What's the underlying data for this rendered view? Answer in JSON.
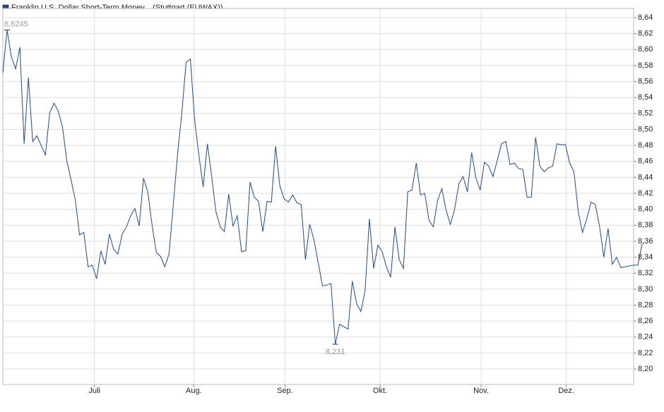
{
  "chart_data": {
    "type": "line",
    "series": [
      {
        "name": "Franklin U.S. Dollar Short-Term Money... (Stuttgart (EUWAX))",
        "color": "#1f4b8f",
        "values": [
          8.571,
          8.6245,
          8.591,
          8.576,
          8.603,
          8.482,
          8.565,
          8.485,
          8.492,
          8.48,
          8.468,
          8.521,
          8.533,
          8.523,
          8.503,
          8.461,
          8.437,
          8.412,
          8.368,
          8.371,
          8.328,
          8.33,
          8.313,
          8.348,
          8.331,
          8.369,
          8.35,
          8.344,
          8.369,
          8.378,
          8.392,
          8.401,
          8.379,
          8.439,
          8.422,
          8.381,
          8.346,
          8.341,
          8.328,
          8.344,
          8.406,
          8.469,
          8.521,
          8.584,
          8.588,
          8.512,
          8.468,
          8.428,
          8.482,
          8.441,
          8.397,
          8.378,
          8.372,
          8.419,
          8.379,
          8.392,
          8.347,
          8.348,
          8.434,
          8.415,
          8.41,
          8.372,
          8.41,
          8.409,
          8.479,
          8.429,
          8.413,
          8.409,
          8.418,
          8.408,
          8.406,
          8.337,
          8.381,
          8.362,
          8.333,
          8.304,
          8.305,
          8.307,
          8.231,
          8.256,
          8.253,
          8.25,
          8.31,
          8.282,
          8.272,
          8.298,
          8.388,
          8.326,
          8.355,
          8.347,
          8.328,
          8.315,
          8.378,
          8.337,
          8.326,
          8.422,
          8.424,
          8.458,
          8.418,
          8.42,
          8.386,
          8.378,
          8.411,
          8.426,
          8.399,
          8.381,
          8.4,
          8.432,
          8.441,
          8.422,
          8.471,
          8.439,
          8.424,
          8.459,
          8.454,
          8.441,
          8.461,
          8.482,
          8.485,
          8.456,
          8.458,
          8.451,
          8.45,
          8.415,
          8.415,
          8.49,
          8.454,
          8.447,
          8.452,
          8.454,
          8.482,
          8.481,
          8.481,
          8.458,
          8.447,
          8.397,
          8.371,
          8.388,
          8.409,
          8.406,
          8.379,
          8.34,
          8.376,
          8.331,
          8.34,
          8.327,
          8.328,
          8.329,
          8.33,
          8.33,
          8.357
        ]
      }
    ],
    "xlim": [
      0,
      148
    ],
    "xticks": [
      {
        "value": 21.5,
        "label": "Juli"
      },
      {
        "value": 44.8,
        "label": "Aug."
      },
      {
        "value": 66.2,
        "label": "Sep."
      },
      {
        "value": 88.5,
        "label": "Okt."
      },
      {
        "value": 112.2,
        "label": "Nov."
      },
      {
        "value": 132.2,
        "label": "Dez."
      }
    ],
    "ylim": [
      8.1806,
      8.6515
    ],
    "yticks": [
      {
        "value": 8.2,
        "label": "8,20"
      },
      {
        "value": 8.22,
        "label": "8,22"
      },
      {
        "value": 8.24,
        "label": "8,24"
      },
      {
        "value": 8.26,
        "label": "8,26"
      },
      {
        "value": 8.28,
        "label": "8,28"
      },
      {
        "value": 8.3,
        "label": "8,30"
      },
      {
        "value": 8.32,
        "label": "8,32"
      },
      {
        "value": 8.34,
        "label": "8,34"
      },
      {
        "value": 8.36,
        "label": "8,36"
      },
      {
        "value": 8.38,
        "label": "8,38"
      },
      {
        "value": 8.4,
        "label": "8,40"
      },
      {
        "value": 8.42,
        "label": "8,42"
      },
      {
        "value": 8.44,
        "label": "8,44"
      },
      {
        "value": 8.46,
        "label": "8,46"
      },
      {
        "value": 8.48,
        "label": "8,48"
      },
      {
        "value": 8.5,
        "label": "8,50"
      },
      {
        "value": 8.52,
        "label": "8,52"
      },
      {
        "value": 8.54,
        "label": "8,54"
      },
      {
        "value": 8.56,
        "label": "8,56"
      },
      {
        "value": 8.58,
        "label": "8,58"
      },
      {
        "value": 8.6,
        "label": "8,60"
      },
      {
        "value": 8.62,
        "label": "8,62"
      },
      {
        "value": 8.64,
        "label": "8,64"
      }
    ],
    "max_label": "8,6245",
    "min_label": "8,231",
    "grid": true
  }
}
